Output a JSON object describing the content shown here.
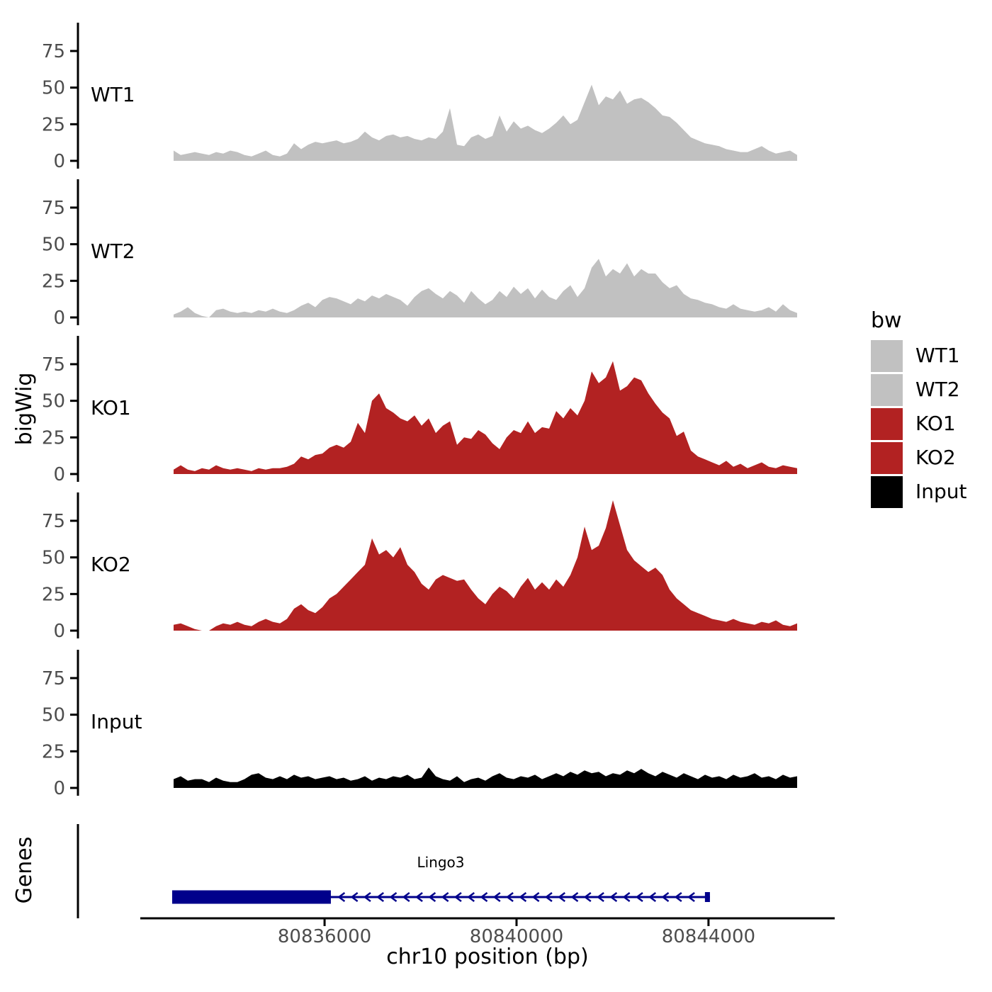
{
  "chart_data": {
    "type": "area",
    "title": "",
    "xlabel": "chr10 position (bp)",
    "ylabel": "bigWig",
    "genes_panel_label": "Genes",
    "axis": {
      "bp_min": 80832160,
      "bp_max": 80846630,
      "x_ticks": [
        80836000,
        80840000,
        80844000
      ],
      "x_tick_labels": [
        "80836000",
        "80840000",
        "80844000"
      ],
      "y_ticks": [
        0,
        25,
        50,
        75
      ],
      "panel_ylim": [
        -5,
        95
      ],
      "grid": "off",
      "legend_position": "right"
    },
    "series_x": {
      "start_bp": 80832854,
      "step_bp": 147.65,
      "n": 89
    },
    "tracks": [
      {
        "name": "WT1",
        "color": "#C1C1C1",
        "values": [
          7,
          4,
          5,
          6,
          5,
          4,
          6,
          5,
          7,
          6,
          4,
          3,
          5,
          7,
          4,
          3,
          5,
          12,
          8,
          11,
          13,
          12,
          13,
          14,
          12,
          13,
          15,
          20,
          16,
          14,
          17,
          18,
          16,
          17,
          15,
          14,
          16,
          15,
          20,
          36,
          11,
          10,
          16,
          18,
          15,
          17,
          31,
          20,
          27,
          22,
          24,
          21,
          19,
          22,
          26,
          31,
          25,
          28,
          40,
          52,
          38,
          44,
          42,
          48,
          39,
          42,
          43,
          40,
          36,
          31,
          30,
          26,
          21,
          16,
          14,
          12,
          11,
          10,
          8,
          7,
          6,
          6,
          8,
          10,
          7,
          5,
          6,
          7,
          4
        ]
      },
      {
        "name": "WT2",
        "color": "#C1C1C1",
        "values": [
          2,
          4,
          7,
          3,
          1,
          0,
          5,
          6,
          4,
          3,
          4,
          3,
          5,
          4,
          6,
          4,
          3,
          5,
          8,
          10,
          7,
          12,
          14,
          13,
          11,
          9,
          13,
          11,
          15,
          13,
          16,
          14,
          12,
          8,
          14,
          18,
          20,
          16,
          13,
          18,
          15,
          10,
          18,
          13,
          9,
          12,
          18,
          14,
          21,
          16,
          20,
          13,
          19,
          14,
          12,
          18,
          22,
          14,
          20,
          34,
          40,
          28,
          33,
          30,
          37,
          28,
          33,
          30,
          30,
          24,
          20,
          22,
          16,
          13,
          12,
          10,
          9,
          7,
          6,
          9,
          6,
          5,
          4,
          5,
          7,
          4,
          9,
          5,
          3
        ]
      },
      {
        "name": "KO1",
        "color": "#B22222",
        "values": [
          3,
          6,
          3,
          2,
          4,
          3,
          6,
          4,
          3,
          4,
          3,
          2,
          4,
          3,
          4,
          4,
          5,
          7,
          12,
          10,
          13,
          14,
          18,
          20,
          18,
          22,
          35,
          28,
          50,
          55,
          45,
          42,
          38,
          36,
          40,
          33,
          38,
          28,
          33,
          36,
          20,
          25,
          24,
          30,
          27,
          21,
          17,
          25,
          30,
          28,
          36,
          28,
          32,
          31,
          43,
          38,
          45,
          40,
          50,
          70,
          62,
          66,
          77,
          57,
          60,
          66,
          64,
          55,
          48,
          42,
          38,
          26,
          29,
          16,
          12,
          10,
          8,
          6,
          9,
          5,
          7,
          4,
          6,
          8,
          5,
          4,
          6,
          5,
          4
        ]
      },
      {
        "name": "KO2",
        "color": "#B22222",
        "values": [
          4,
          5,
          3,
          1,
          0,
          0,
          3,
          5,
          4,
          6,
          4,
          3,
          6,
          8,
          6,
          5,
          8,
          15,
          18,
          14,
          12,
          16,
          22,
          25,
          30,
          35,
          40,
          45,
          63,
          52,
          55,
          50,
          57,
          45,
          40,
          32,
          28,
          35,
          38,
          36,
          34,
          35,
          28,
          22,
          18,
          25,
          30,
          27,
          22,
          30,
          36,
          28,
          33,
          28,
          35,
          30,
          38,
          50,
          71,
          55,
          58,
          70,
          89,
          72,
          55,
          48,
          44,
          40,
          43,
          38,
          28,
          22,
          18,
          14,
          12,
          10,
          8,
          7,
          6,
          8,
          6,
          5,
          4,
          6,
          5,
          7,
          4,
          3,
          5
        ]
      },
      {
        "name": "Input",
        "color": "#000000",
        "values": [
          6,
          8,
          5,
          6,
          6,
          4,
          7,
          5,
          4,
          4,
          6,
          9,
          10,
          7,
          6,
          8,
          6,
          9,
          7,
          8,
          6,
          7,
          8,
          6,
          7,
          5,
          6,
          8,
          5,
          7,
          6,
          8,
          7,
          9,
          6,
          7,
          14,
          8,
          6,
          5,
          8,
          4,
          6,
          7,
          5,
          8,
          10,
          7,
          6,
          8,
          7,
          9,
          6,
          8,
          10,
          8,
          11,
          9,
          12,
          10,
          11,
          8,
          10,
          9,
          12,
          10,
          13,
          10,
          8,
          11,
          9,
          7,
          10,
          8,
          6,
          9,
          7,
          8,
          6,
          9,
          7,
          8,
          10,
          7,
          8,
          6,
          9,
          7,
          8
        ]
      }
    ],
    "legend": {
      "title": "bw",
      "entries": [
        {
          "label": "WT1",
          "color": "#C1C1C1"
        },
        {
          "label": "WT2",
          "color": "#C1C1C1"
        },
        {
          "label": "KO1",
          "color": "#B22222"
        },
        {
          "label": "KO2",
          "color": "#B22222"
        },
        {
          "label": "Input",
          "color": "#000000"
        }
      ]
    },
    "gene": {
      "label": "Lingo3",
      "strand": "-",
      "color": "#00008B",
      "start_bp": 80832824,
      "thick_end_bp": 80836131,
      "terminal_box_start_bp": 80843926,
      "end_bp": 80844030,
      "arrow_start_bp": 80836300,
      "arrow_end_bp": 80843700,
      "arrow_step_bp": 270
    }
  }
}
